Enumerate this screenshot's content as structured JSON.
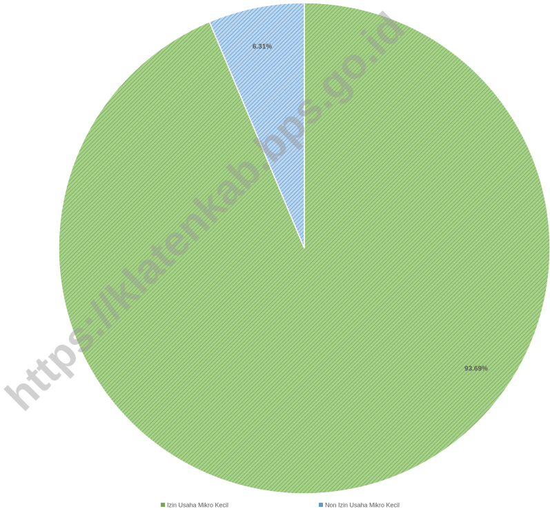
{
  "chart_data": {
    "type": "pie",
    "categories": [
      "Izin Usaha Mikro Kecil",
      "Non Izin Usaha Mikro Kecil"
    ],
    "values": [
      93.69,
      6.31
    ],
    "value_labels": [
      "93.69%",
      "6.31%"
    ],
    "colors": [
      "#a9d18e",
      "#bdd7ee"
    ],
    "hatch_colors": [
      "#70ad47",
      "#5b9bd5"
    ],
    "legend": "bottom",
    "watermark": "https://klatenkab.bps.go.id"
  }
}
